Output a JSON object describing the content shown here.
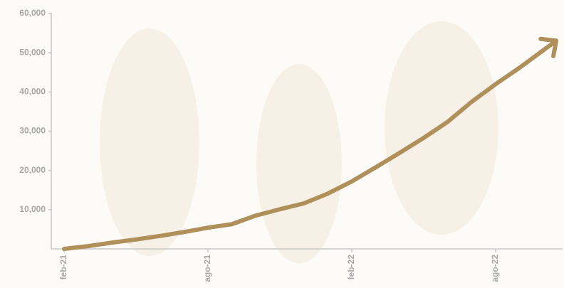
{
  "chart_data": {
    "type": "line",
    "categories": [
      "feb-21",
      null,
      null,
      null,
      null,
      null,
      "ago-21",
      null,
      null,
      null,
      null,
      null,
      "feb-22",
      null,
      null,
      null,
      null,
      null,
      "ago-22",
      null,
      null
    ],
    "series": [
      {
        "color": "#b0905a",
        "values": [
          0,
          700,
          1600,
          2400,
          3300,
          4300,
          5400,
          6300,
          8500,
          10100,
          11600,
          14100,
          17200,
          20800,
          24500,
          28300,
          32400,
          37500,
          42000,
          46200,
          50700
        ]
      }
    ],
    "ylim": [
      0,
      60000
    ],
    "yticks": [
      {
        "value": 10000,
        "label": "10,000"
      },
      {
        "value": 20000,
        "label": "20,000"
      },
      {
        "value": 30000,
        "label": "30,000"
      },
      {
        "value": 40000,
        "label": "40,000"
      },
      {
        "value": 50000,
        "label": "50,000"
      },
      {
        "value": 60000,
        "label": "60,000"
      }
    ]
  }
}
